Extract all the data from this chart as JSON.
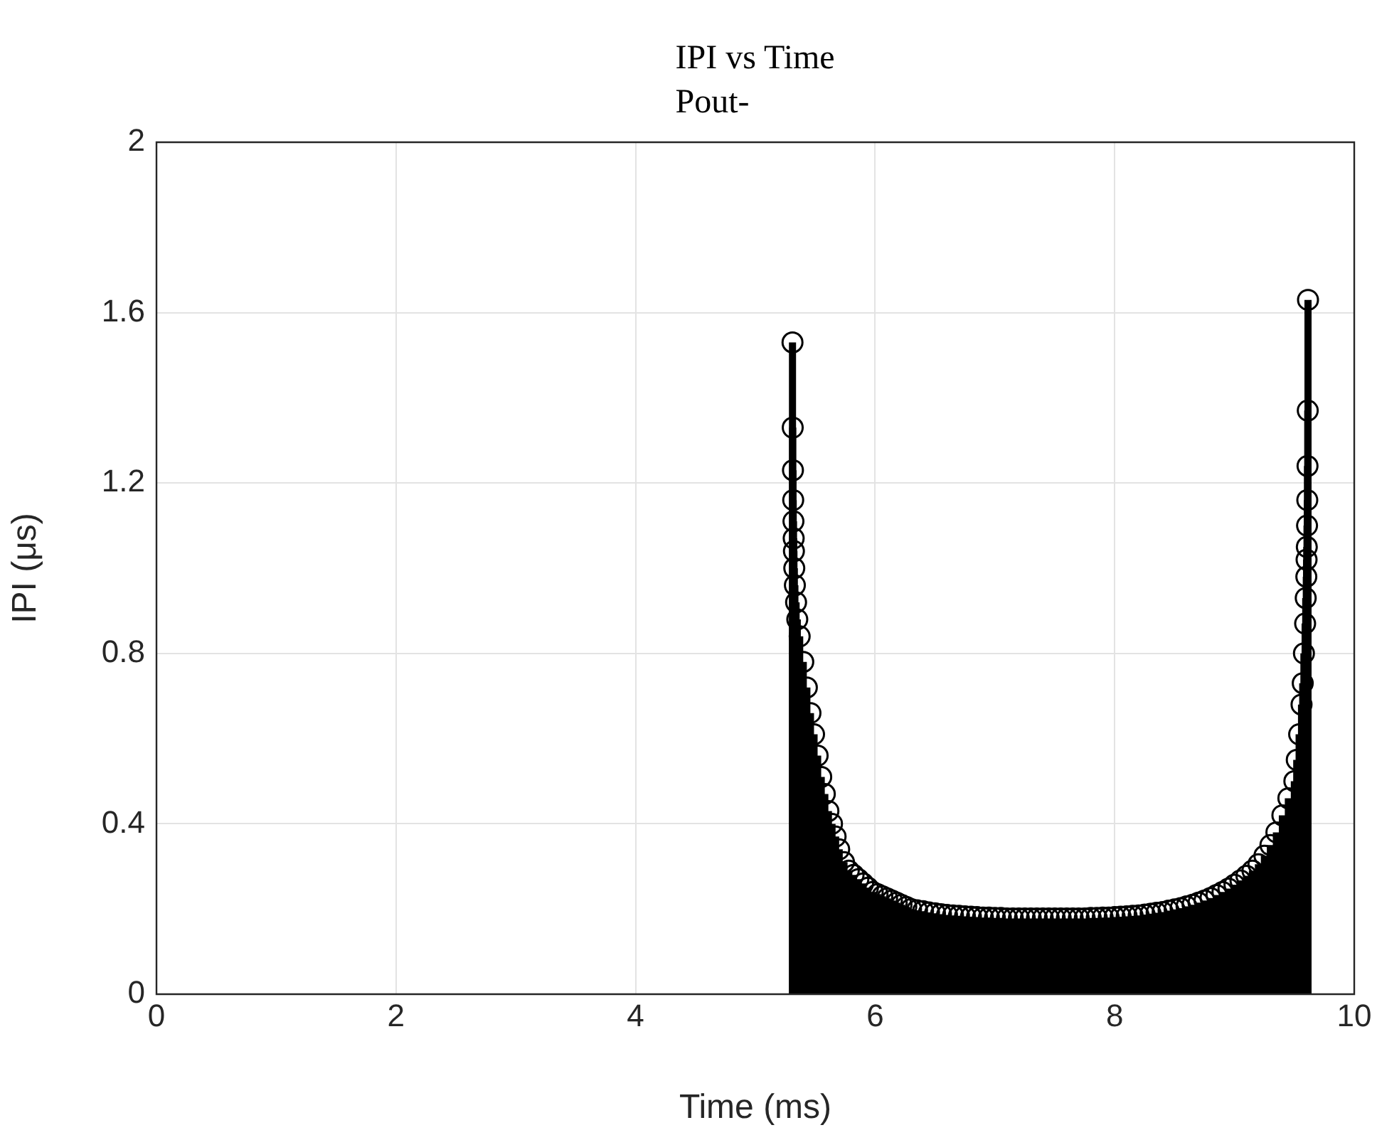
{
  "chart_data": {
    "type": "lollipop",
    "title": "IPI vs Time",
    "subtitle": "Pout-",
    "xlabel": "Time (ms)",
    "ylabel": "IPI (μs)",
    "xlim": [
      0,
      10
    ],
    "xticks": [
      0,
      2,
      4,
      6,
      8,
      10
    ],
    "ylim": [
      0,
      2
    ],
    "yticks": [
      0,
      0.4,
      0.8,
      1.2,
      1.6,
      2
    ],
    "grid": true,
    "legend": false,
    "marker": "circle",
    "series": [
      {
        "color": "#000000",
        "x": [
          5.31,
          5.312,
          5.314,
          5.316,
          5.318,
          5.32,
          5.322,
          5.325,
          5.33,
          5.34,
          5.35,
          5.37,
          5.4,
          5.43,
          5.46,
          5.49,
          5.52,
          5.55,
          5.58,
          5.61,
          5.64,
          5.67,
          5.7,
          5.74,
          5.78,
          5.82,
          5.86,
          5.9,
          5.94,
          5.98,
          6.02,
          6.06,
          6.1,
          6.14,
          6.18,
          6.22,
          6.26,
          6.3,
          6.35,
          6.4,
          6.45,
          6.5,
          6.55,
          6.6,
          6.65,
          6.7,
          6.75,
          6.8,
          6.85,
          6.9,
          6.95,
          7.0,
          7.05,
          7.1,
          7.15,
          7.2,
          7.25,
          7.3,
          7.35,
          7.4,
          7.45,
          7.5,
          7.55,
          7.6,
          7.65,
          7.7,
          7.75,
          7.8,
          7.85,
          7.9,
          7.95,
          8.0,
          8.05,
          8.1,
          8.15,
          8.2,
          8.25,
          8.3,
          8.35,
          8.4,
          8.45,
          8.5,
          8.55,
          8.6,
          8.65,
          8.7,
          8.75,
          8.8,
          8.85,
          8.9,
          8.95,
          9.0,
          9.05,
          9.1,
          9.15,
          9.2,
          9.25,
          9.3,
          9.35,
          9.4,
          9.45,
          9.5,
          9.52,
          9.54,
          9.56,
          9.57,
          9.58,
          9.59,
          9.595,
          9.6,
          9.602,
          9.604,
          9.606,
          9.608,
          9.61,
          9.612,
          9.614
        ],
        "values": [
          1.53,
          1.33,
          1.23,
          1.16,
          1.11,
          1.07,
          1.04,
          1.0,
          0.96,
          0.92,
          0.88,
          0.84,
          0.78,
          0.72,
          0.66,
          0.61,
          0.56,
          0.51,
          0.47,
          0.43,
          0.4,
          0.37,
          0.34,
          0.31,
          0.29,
          0.28,
          0.27,
          0.26,
          0.25,
          0.24,
          0.235,
          0.23,
          0.225,
          0.22,
          0.215,
          0.21,
          0.205,
          0.2,
          0.197,
          0.195,
          0.192,
          0.19,
          0.188,
          0.186,
          0.185,
          0.184,
          0.183,
          0.182,
          0.181,
          0.18,
          0.18,
          0.179,
          0.179,
          0.178,
          0.178,
          0.178,
          0.178,
          0.178,
          0.178,
          0.178,
          0.178,
          0.178,
          0.178,
          0.178,
          0.178,
          0.178,
          0.178,
          0.179,
          0.179,
          0.18,
          0.18,
          0.181,
          0.182,
          0.183,
          0.184,
          0.185,
          0.187,
          0.189,
          0.191,
          0.193,
          0.196,
          0.199,
          0.202,
          0.206,
          0.21,
          0.215,
          0.22,
          0.226,
          0.233,
          0.24,
          0.248,
          0.257,
          0.267,
          0.278,
          0.29,
          0.305,
          0.325,
          0.35,
          0.38,
          0.42,
          0.46,
          0.5,
          0.55,
          0.61,
          0.68,
          0.73,
          0.8,
          0.87,
          0.93,
          0.98,
          1.02,
          1.05,
          1.1,
          1.16,
          1.24,
          1.37,
          1.63
        ]
      }
    ]
  }
}
